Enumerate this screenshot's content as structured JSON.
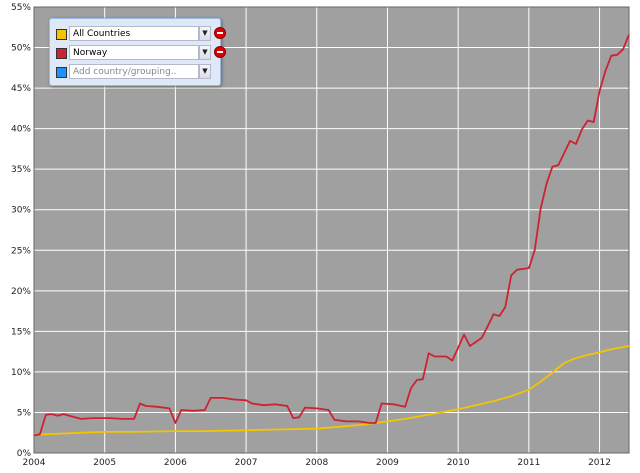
{
  "selector": {
    "rows": [
      {
        "label": "All Countries",
        "color": "#f5c400",
        "removable": true
      },
      {
        "label": "Norway",
        "color": "#cc2233",
        "removable": true
      }
    ],
    "add_placeholder": "Add country/grouping..",
    "add_color": "#1e90ff"
  },
  "chart_data": {
    "type": "line",
    "xlabel": "",
    "ylabel": "",
    "x_tick_labels": [
      "2004",
      "2005",
      "2006",
      "2007",
      "2008",
      "2009",
      "2010",
      "2011",
      "2012"
    ],
    "y_tick_labels": [
      "0%",
      "5%",
      "10%",
      "15%",
      "20%",
      "25%",
      "30%",
      "35%",
      "40%",
      "45%",
      "50%",
      "55%"
    ],
    "xlim": [
      "2004-01",
      "2012-06"
    ],
    "ylim": [
      0,
      55
    ],
    "grid": true,
    "background": "#a0a0a0",
    "grid_color": "#ffffff",
    "series": [
      {
        "name": "All Countries",
        "color": "#f5c400",
        "points": [
          [
            "2004-01",
            2.3
          ],
          [
            "2004-03",
            2.3
          ],
          [
            "2004-06",
            2.4
          ],
          [
            "2004-09",
            2.5
          ],
          [
            "2005-01",
            2.6
          ],
          [
            "2005-06",
            2.6
          ],
          [
            "2006-01",
            2.7
          ],
          [
            "2006-06",
            2.7
          ],
          [
            "2007-01",
            2.8
          ],
          [
            "2007-06",
            2.9
          ],
          [
            "2008-01",
            3.0
          ],
          [
            "2008-06",
            3.3
          ],
          [
            "2008-09",
            3.5
          ],
          [
            "2009-01",
            3.9
          ],
          [
            "2009-04",
            4.2
          ],
          [
            "2009-07",
            4.6
          ],
          [
            "2009-10",
            5.0
          ],
          [
            "2010-01",
            5.4
          ],
          [
            "2010-04",
            5.9
          ],
          [
            "2010-07",
            6.4
          ],
          [
            "2010-10",
            7.0
          ],
          [
            "2011-01",
            7.8
          ],
          [
            "2011-03",
            8.8
          ],
          [
            "2011-05",
            9.9
          ],
          [
            "2011-07",
            11.1
          ],
          [
            "2011-09",
            11.7
          ],
          [
            "2011-11",
            12.1
          ],
          [
            "2012-01",
            12.4
          ],
          [
            "2012-03",
            12.8
          ],
          [
            "2012-06",
            13.2
          ]
        ]
      },
      {
        "name": "Norway",
        "color": "#cc2233",
        "points": [
          [
            "2004-01",
            2.2
          ],
          [
            "2004-02",
            2.3
          ],
          [
            "2004-03",
            4.7
          ],
          [
            "2004-04",
            4.8
          ],
          [
            "2004-05",
            4.6
          ],
          [
            "2004-06",
            4.8
          ],
          [
            "2004-07",
            4.6
          ],
          [
            "2004-09",
            4.2
          ],
          [
            "2004-11",
            4.3
          ],
          [
            "2005-02",
            4.3
          ],
          [
            "2005-04",
            4.2
          ],
          [
            "2005-06",
            4.2
          ],
          [
            "2005-07",
            6.1
          ],
          [
            "2005-08",
            5.8
          ],
          [
            "2005-10",
            5.7
          ],
          [
            "2005-12",
            5.5
          ],
          [
            "2006-01",
            3.7
          ],
          [
            "2006-02",
            5.3
          ],
          [
            "2006-04",
            5.2
          ],
          [
            "2006-06",
            5.3
          ],
          [
            "2006-07",
            6.8
          ],
          [
            "2006-09",
            6.8
          ],
          [
            "2006-11",
            6.6
          ],
          [
            "2007-01",
            6.5
          ],
          [
            "2007-02",
            6.1
          ],
          [
            "2007-04",
            5.9
          ],
          [
            "2007-06",
            6.0
          ],
          [
            "2007-08",
            5.8
          ],
          [
            "2007-09",
            4.3
          ],
          [
            "2007-10",
            4.4
          ],
          [
            "2007-11",
            5.6
          ],
          [
            "2008-01",
            5.5
          ],
          [
            "2008-03",
            5.3
          ],
          [
            "2008-04",
            4.1
          ],
          [
            "2008-06",
            3.9
          ],
          [
            "2008-08",
            3.9
          ],
          [
            "2008-10",
            3.7
          ],
          [
            "2008-11",
            3.7
          ],
          [
            "2008-12",
            6.1
          ],
          [
            "2009-02",
            6.0
          ],
          [
            "2009-04",
            5.7
          ],
          [
            "2009-05",
            8.0
          ],
          [
            "2009-06",
            9.0
          ],
          [
            "2009-07",
            9.1
          ],
          [
            "2009-08",
            12.3
          ],
          [
            "2009-09",
            11.9
          ],
          [
            "2009-11",
            11.9
          ],
          [
            "2009-12",
            11.4
          ],
          [
            "2010-01",
            13.0
          ],
          [
            "2010-02",
            14.6
          ],
          [
            "2010-03",
            13.2
          ],
          [
            "2010-05",
            14.2
          ],
          [
            "2010-06",
            15.6
          ],
          [
            "2010-07",
            17.1
          ],
          [
            "2010-08",
            16.9
          ],
          [
            "2010-09",
            18.0
          ],
          [
            "2010-10",
            21.9
          ],
          [
            "2010-11",
            22.6
          ],
          [
            "2011-01",
            22.8
          ],
          [
            "2011-02",
            25.0
          ],
          [
            "2011-03",
            30.1
          ],
          [
            "2011-04",
            33.2
          ],
          [
            "2011-05",
            35.3
          ],
          [
            "2011-06",
            35.5
          ],
          [
            "2011-07",
            37.0
          ],
          [
            "2011-08",
            38.5
          ],
          [
            "2011-09",
            38.1
          ],
          [
            "2011-10",
            39.9
          ],
          [
            "2011-11",
            41.0
          ],
          [
            "2011-12",
            40.8
          ],
          [
            "2012-01",
            44.6
          ],
          [
            "2012-02",
            47.1
          ],
          [
            "2012-03",
            49.0
          ],
          [
            "2012-04",
            49.1
          ],
          [
            "2012-05",
            49.8
          ],
          [
            "2012-06",
            51.6
          ]
        ]
      }
    ]
  }
}
